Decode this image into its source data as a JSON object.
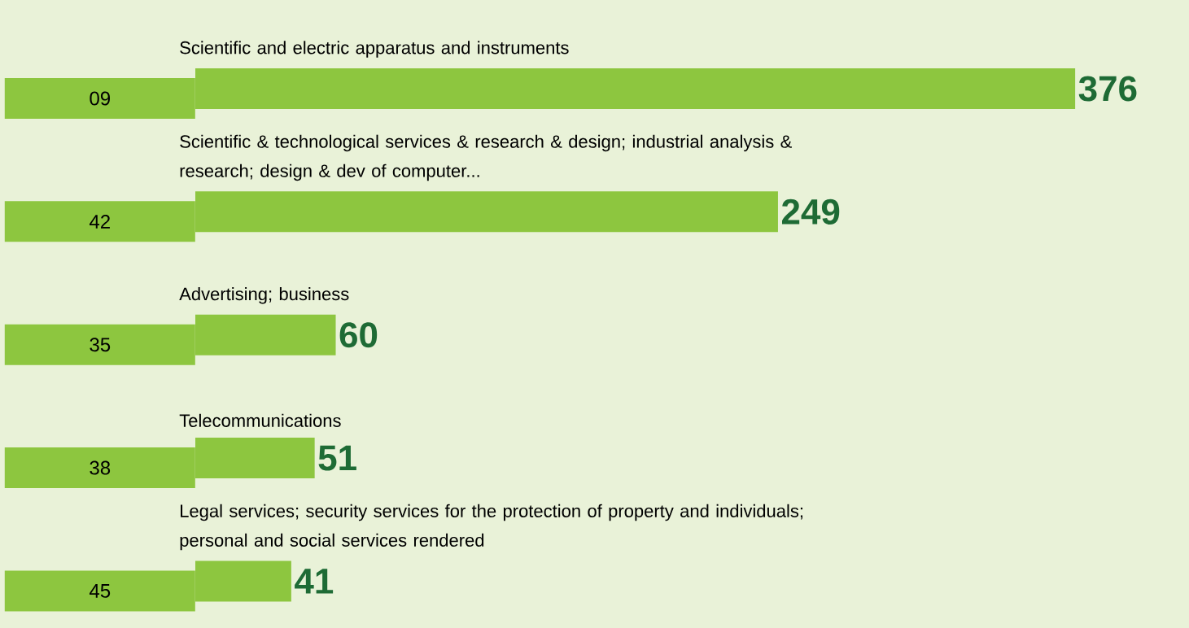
{
  "chart_data": {
    "type": "bar",
    "orientation": "horizontal",
    "categories": [
      "09",
      "42",
      "35",
      "38",
      "45"
    ],
    "values": [
      376,
      249,
      60,
      51,
      41
    ],
    "color": "#8dc63f",
    "data_labels": true,
    "annotations": [
      "Scientific and electric apparatus and instruments",
      "Scientific & technological services & research & design;  industrial analysis & research; design & dev of computer...",
      "Advertising; business",
      "Telecommunications",
      "Legal services; security services for the protection of  property and individuals; personal and social services rendered"
    ]
  }
}
